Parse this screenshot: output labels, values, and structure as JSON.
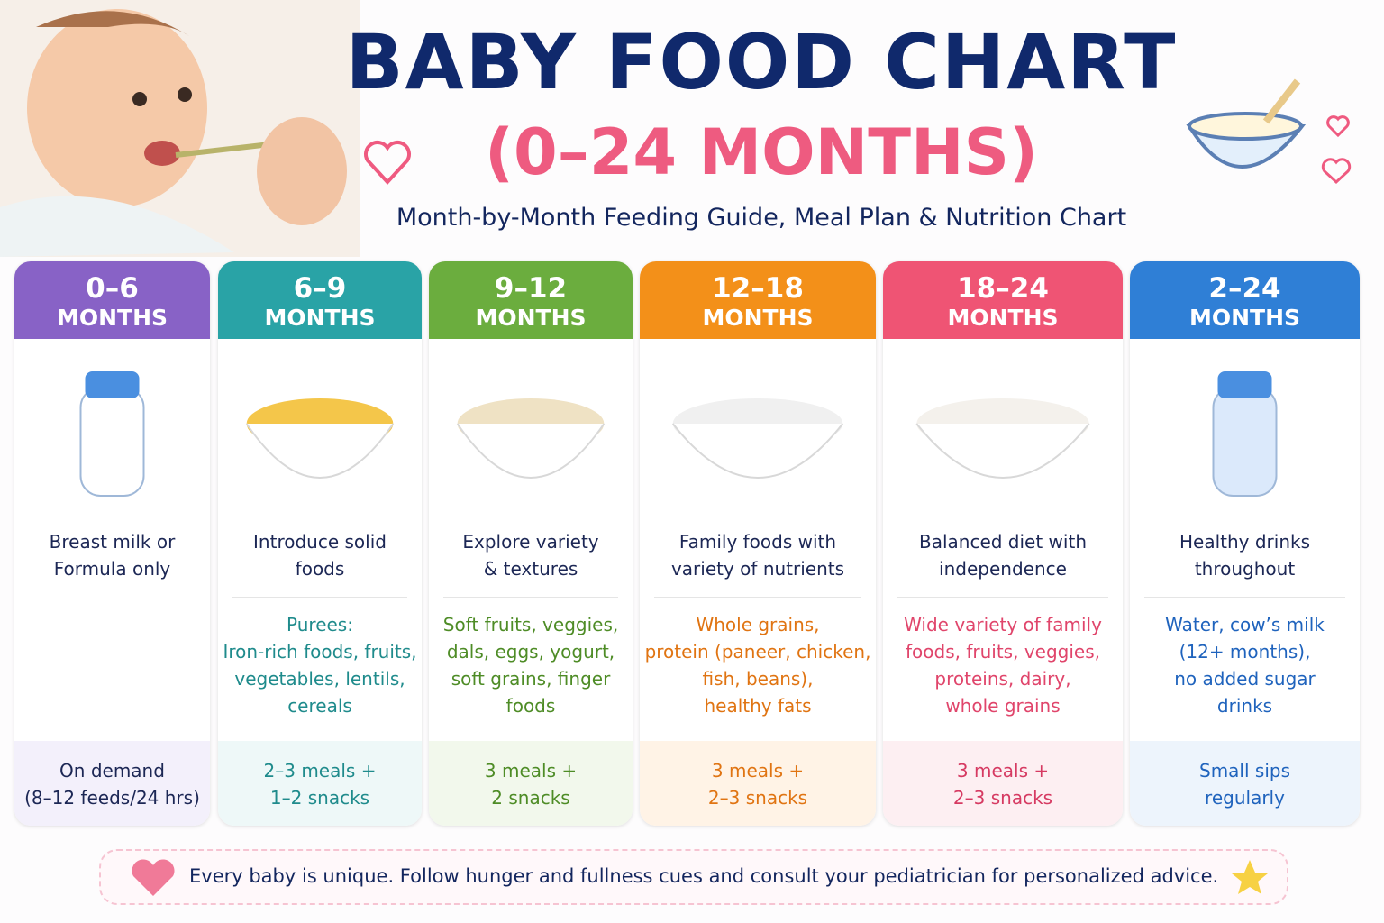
{
  "header": {
    "title": "BABY FOOD CHART",
    "age_range": "(0–24 MONTHS)",
    "subtitle": "Month-by-Month Feeding Guide, Meal Plan & Nutrition Chart"
  },
  "columns": [
    {
      "range": "0–6",
      "unit": "MONTHS",
      "summary": [
        "Breast milk or",
        "Formula only"
      ],
      "details": [],
      "frequency": [
        "On demand",
        "(8–12 feeds/24 hrs)"
      ]
    },
    {
      "range": "6–9",
      "unit": "MONTHS",
      "summary": [
        "Introduce solid",
        "foods"
      ],
      "details": [
        "Purees:",
        "Iron-rich foods, fruits,",
        "vegetables, lentils,",
        "cereals"
      ],
      "frequency": [
        "2–3 meals +",
        "1–2 snacks"
      ]
    },
    {
      "range": "9–12",
      "unit": "MONTHS",
      "summary": [
        "Explore variety",
        "& textures"
      ],
      "details": [
        "Soft fruits, veggies,",
        "dals, eggs, yogurt,",
        "soft grains, finger",
        "foods"
      ],
      "frequency": [
        "3 meals +",
        "2 snacks"
      ]
    },
    {
      "range": "12–18",
      "unit": "MONTHS",
      "summary": [
        "Family foods with",
        "variety of nutrients"
      ],
      "details": [
        "Whole grains,",
        "protein (paneer, chicken,",
        "fish, beans),",
        "healthy fats"
      ],
      "frequency": [
        "3 meals +",
        "2–3 snacks"
      ]
    },
    {
      "range": "18–24",
      "unit": "MONTHS",
      "summary": [
        "Balanced diet with",
        "independence"
      ],
      "details": [
        "Wide variety of family",
        "foods, fruits, veggies,",
        "proteins, dairy,",
        "whole grains"
      ],
      "frequency": [
        "3 meals +",
        "2–3 snacks"
      ]
    },
    {
      "range": "2–24",
      "unit": "MONTHS",
      "summary": [
        "Healthy drinks",
        "throughout"
      ],
      "details": [
        "Water, cow’s milk",
        "(12+ months),",
        "no added sugar",
        "drinks"
      ],
      "frequency": [
        "Small sips",
        "regularly"
      ]
    }
  ],
  "footer": {
    "note": "Every baby is unique. Follow hunger and fullness cues and consult your pediatrician for personalized advice."
  }
}
